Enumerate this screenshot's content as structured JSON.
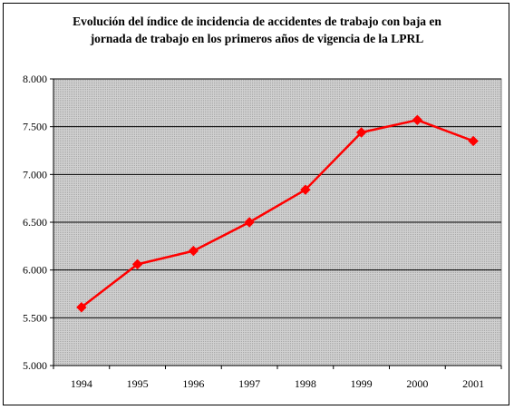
{
  "chart_data": {
    "type": "line",
    "title_lines": [
      "Evolución del índice de incidencia de accidentes de trabajo con baja en",
      "jornada de trabajo en los primeros años de vigencia de la LPRL"
    ],
    "xlabel": "",
    "ylabel": "",
    "categories": [
      "1994",
      "1995",
      "1996",
      "1997",
      "1998",
      "1999",
      "2000",
      "2001"
    ],
    "series": [
      {
        "values": [
          5610,
          6060,
          6200,
          6500,
          6840,
          7440,
          7570,
          7350
        ],
        "color": "#ff0000"
      }
    ],
    "ylim": [
      5000,
      8000
    ],
    "yticks": [
      5000,
      5500,
      6000,
      6500,
      7000,
      7500,
      8000
    ],
    "ytick_labels": [
      "5.000",
      "5.500",
      "6.000",
      "6.500",
      "7.000",
      "7.500",
      "8.000"
    ],
    "grid": true,
    "plot_background": "#c0c0c0",
    "legend": "none"
  }
}
